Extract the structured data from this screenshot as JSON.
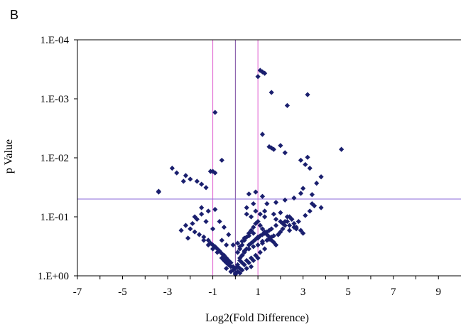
{
  "chart_data": {
    "type": "scatter",
    "panel_label": "B",
    "title": "",
    "xlabel": "Log2(Fold Difference)",
    "ylabel": "p Value",
    "xlim": [
      -7,
      10
    ],
    "ylim": [
      1,
      0.0001
    ],
    "y_scale": "log-reversed",
    "x_ticks": [
      "-7",
      "-5",
      "-3",
      "-1",
      "1",
      "3",
      "5",
      "7",
      "9"
    ],
    "x_tick_values": [
      -7,
      -5,
      -3,
      -1,
      1,
      3,
      5,
      7,
      9
    ],
    "y_ticks": [
      "1.E+00",
      "1.E-01",
      "1.E-02",
      "1.E-03",
      "1.E-04"
    ],
    "y_tick_values": [
      1,
      0.1,
      0.01,
      0.001,
      0.0001
    ],
    "grid": false,
    "legend": "none",
    "reference_lines": {
      "vertical_fold_threshold": [
        -1,
        1
      ],
      "vertical_center": [
        0
      ],
      "horizontal_p_threshold": [
        0.05
      ]
    },
    "colors": {
      "points": "#1a1f6e",
      "threshold_lines": "#e060d0",
      "center_line": "#7a4aa0",
      "p_line": "#8a6ad8",
      "axis": "#000000"
    },
    "x": [
      -3.4,
      -3.4,
      -2.3,
      -0.9,
      3.2,
      4.7,
      1.0,
      1.1,
      1.2,
      1.3,
      1.6,
      2.3,
      1.2,
      1.5,
      1.6,
      1.7,
      2.0,
      2.2,
      2.9,
      3.2,
      -0.6,
      -1.0,
      -0.9,
      -1.1,
      -2.8,
      -2.6,
      -2.2,
      -2.0,
      -1.7,
      -1.5,
      -1.3,
      3.1,
      3.3,
      3.8,
      3.6,
      3.0,
      3.4,
      2.6,
      2.2,
      1.8,
      1.4,
      0.9,
      0.6,
      1.2,
      0.8,
      0.5,
      0.9,
      1.1,
      1.3,
      1.7,
      2.0,
      2.3,
      2.5,
      2.8,
      3.1,
      3.3,
      3.5,
      3.8,
      2.6,
      2.4,
      1.9,
      1.6,
      1.4,
      1.2,
      1.0,
      0.8,
      0.6,
      0.4,
      0.3,
      0.2,
      0.1,
      0.0,
      -0.1,
      -0.2,
      -0.3,
      -0.4,
      -0.5,
      -0.6,
      -0.7,
      -0.8,
      -0.9,
      -1.0,
      -1.1,
      -1.2,
      -1.4,
      -1.6,
      -1.8,
      -2.0,
      -2.2,
      -2.4,
      -1.3,
      -1.7,
      -1.9,
      -1.5,
      -1.2,
      -0.9,
      -0.7,
      -0.5,
      -0.3,
      -0.1,
      0.1,
      0.2,
      0.3,
      0.4,
      0.5,
      0.6,
      0.7,
      0.8,
      0.9,
      1.0,
      1.1,
      1.2,
      1.3,
      1.4,
      1.5,
      1.6,
      1.7,
      1.8,
      1.9,
      2.0,
      2.1,
      2.2,
      2.3,
      2.4,
      2.5,
      2.6,
      2.7,
      2.9,
      3.0,
      0.2,
      0.3,
      0.4,
      0.5,
      0.6,
      0.7,
      0.8,
      0.9,
      1.0,
      1.1,
      1.2,
      1.3,
      1.4,
      1.5,
      1.6,
      1.8,
      2.0,
      0.1,
      0.0,
      -0.1,
      -0.2,
      -0.3,
      -0.4,
      -0.5,
      -0.6,
      -0.8,
      -1.0,
      -1.2,
      -1.4,
      0.3,
      0.5,
      0.7,
      0.9,
      1.1,
      1.3,
      0.1,
      0.2,
      0.4,
      0.6,
      0.8,
      1.0,
      0.0,
      -0.2,
      -0.4,
      0.2,
      0.3,
      0.5,
      0.7,
      0.1,
      0.2,
      0.3,
      0.4,
      0.6,
      0.8,
      1.0,
      1.2,
      1.5,
      1.7,
      2.1,
      2.4,
      2.7,
      -1.5,
      -1.8,
      -2.1,
      -1.0,
      -0.6,
      -0.4,
      0.5,
      0.7,
      1.3,
      1.8,
      2.2,
      2.9,
      3.4
    ],
    "y": [
      0.038,
      0.037,
      0.025,
      0.0017,
      0.00085,
      0.0072,
      0.00042,
      0.00033,
      0.00035,
      0.00037,
      0.00078,
      0.0013,
      0.004,
      0.0065,
      0.0068,
      0.0072,
      0.0062,
      0.0082,
      0.011,
      0.0098,
      0.011,
      0.017,
      0.018,
      0.017,
      0.015,
      0.018,
      0.02,
      0.023,
      0.025,
      0.028,
      0.032,
      0.013,
      0.015,
      0.021,
      0.027,
      0.033,
      0.042,
      0.048,
      0.052,
      0.057,
      0.06,
      0.038,
      0.041,
      0.045,
      0.06,
      0.07,
      0.08,
      0.09,
      0.1,
      0.09,
      0.085,
      0.1,
      0.11,
      0.12,
      0.095,
      0.08,
      0.065,
      0.07,
      0.15,
      0.17,
      0.2,
      0.22,
      0.25,
      0.28,
      0.3,
      0.32,
      0.35,
      0.38,
      0.45,
      0.55,
      0.65,
      0.75,
      0.7,
      0.6,
      0.55,
      0.5,
      0.45,
      0.42,
      0.38,
      0.35,
      0.32,
      0.3,
      0.28,
      0.25,
      0.22,
      0.2,
      0.18,
      0.16,
      0.14,
      0.17,
      0.12,
      0.11,
      0.13,
      0.09,
      0.08,
      0.075,
      0.12,
      0.15,
      0.2,
      0.3,
      0.4,
      0.35,
      0.3,
      0.25,
      0.22,
      0.19,
      0.17,
      0.15,
      0.13,
      0.12,
      0.14,
      0.16,
      0.18,
      0.2,
      0.22,
      0.25,
      0.27,
      0.3,
      0.2,
      0.18,
      0.16,
      0.14,
      0.12,
      0.1,
      0.11,
      0.13,
      0.15,
      0.17,
      0.19,
      0.5,
      0.45,
      0.4,
      0.35,
      0.3,
      0.28,
      0.26,
      0.24,
      0.22,
      0.21,
      0.2,
      0.19,
      0.18,
      0.17,
      0.16,
      0.14,
      0.12,
      0.85,
      0.9,
      0.8,
      0.7,
      0.65,
      0.6,
      0.55,
      0.5,
      0.4,
      0.35,
      0.3,
      0.25,
      0.6,
      0.55,
      0.5,
      0.45,
      0.4,
      0.35,
      0.7,
      0.75,
      0.65,
      0.6,
      0.55,
      0.5,
      0.95,
      0.85,
      0.75,
      0.9,
      0.8,
      0.75,
      0.7,
      0.28,
      0.32,
      0.26,
      0.23,
      0.21,
      0.19,
      0.23,
      0.26,
      0.24,
      0.21,
      0.13,
      0.14,
      0.16,
      0.07,
      0.1,
      0.23,
      0.16,
      0.25,
      0.3,
      0.09,
      0.1,
      0.08,
      0.11,
      0.12,
      0.04,
      0.06
    ]
  }
}
